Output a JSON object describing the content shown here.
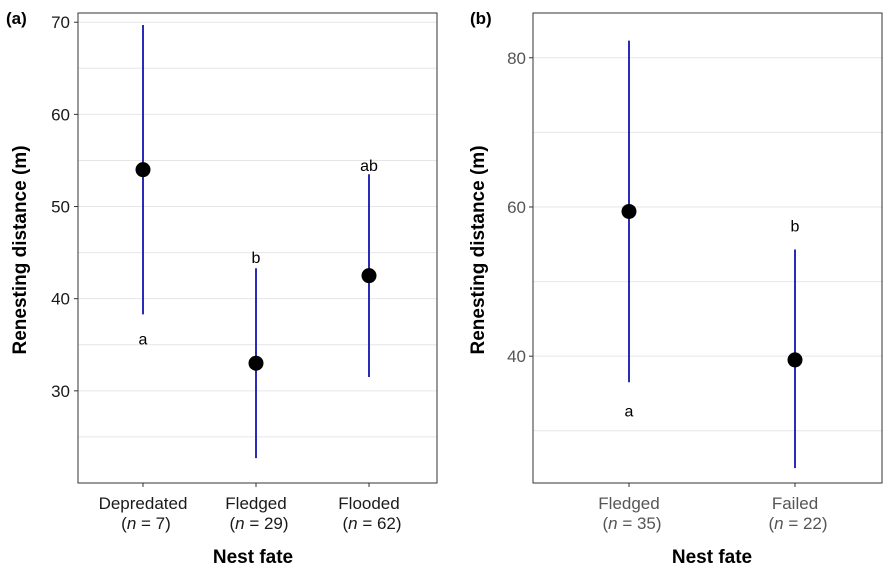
{
  "chart_data": [
    {
      "type": "point-range",
      "panel_label": "(a)",
      "xlabel": "Nest fate",
      "ylabel": "Renesting distance (m)",
      "ylim": [
        20,
        71
      ],
      "yticks": [
        30,
        40,
        50,
        60,
        70
      ],
      "grid": true,
      "categories": [
        {
          "name": "Depredated",
          "n": "7",
          "mean": 54,
          "lower": 38.3,
          "upper": 69.7,
          "letter": "a",
          "letter_y": 35.7
        },
        {
          "name": "Fledged",
          "n": "29",
          "mean": 33,
          "lower": 22.7,
          "upper": 43.3,
          "letter": "b",
          "letter_y": 44.5
        },
        {
          "name": "Flooded",
          "n": "62",
          "mean": 42.5,
          "lower": 31.5,
          "upper": 53.5,
          "letter": "ab",
          "letter_y": 54.5
        }
      ]
    },
    {
      "type": "point-range",
      "panel_label": "(b)",
      "xlabel": "Nest fate",
      "ylabel": "Renesting distance (m)",
      "ylim": [
        23,
        86
      ],
      "yticks": [
        40,
        60,
        80
      ],
      "grid": true,
      "categories": [
        {
          "name": "Fledged",
          "n": "35",
          "mean": 59.4,
          "lower": 36.5,
          "upper": 82.3,
          "letter": "a",
          "letter_y": 32.7
        },
        {
          "name": "Failed",
          "n": "22",
          "mean": 39.5,
          "lower": 25,
          "upper": 54.3,
          "letter": "b",
          "letter_y": 57.5
        }
      ]
    }
  ],
  "n_prefix": "n",
  "n_equals": " = ",
  "colors": {
    "interval": "#2b2bb5",
    "point": "#000000",
    "grid": "#e6e6e6",
    "frame": "#333333",
    "tick_label_a": "#1a1a1a",
    "tick_label_b": "#555555"
  }
}
